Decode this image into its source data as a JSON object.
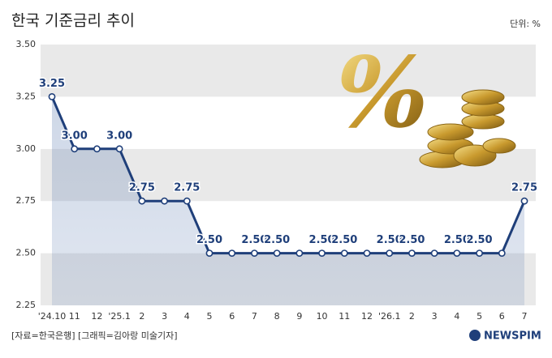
{
  "chart_data": {
    "type": "line",
    "title": "한국 기준금리 추이",
    "unit": "단위: %",
    "categories": [
      "'24.10",
      "11",
      "12",
      "'25.1",
      "2",
      "3",
      "4",
      "5",
      "6",
      "7",
      "8",
      "9",
      "10",
      "11",
      "12",
      "'26.1",
      "2",
      "3",
      "4",
      "5",
      "6",
      "7"
    ],
    "series": [
      {
        "name": "기준금리",
        "color": "#1f3f7a",
        "values": [
          3.25,
          3.0,
          3.0,
          3.0,
          2.75,
          2.75,
          2.75,
          2.5,
          2.5,
          2.5,
          2.5,
          2.5,
          2.5,
          2.5,
          2.5,
          2.5,
          2.5,
          2.5,
          2.5,
          2.5,
          2.5,
          2.75
        ],
        "value_labels": [
          "3.25",
          "3.00",
          null,
          "3.00",
          "2.75",
          null,
          "2.75",
          "2.50",
          null,
          "2.50",
          "2.50",
          null,
          "2.50",
          "2.50",
          null,
          "2.50",
          "2.50",
          null,
          "2.50",
          "2.50",
          null,
          "2.75"
        ]
      }
    ],
    "ylim": [
      2.25,
      3.5
    ],
    "yticks": [
      2.25,
      {
        "value": 2.5,
        "label": "2.50"
      },
      2.75,
      {
        "value": 3.0,
        "label": "3.00"
      },
      3.25,
      {
        "value": 3.5,
        "label": "3.50"
      }
    ],
    "grid": true,
    "source": "[자료=한국은행] [그래픽=김아랑 미술기자]",
    "logo": "NEWSPIM"
  }
}
